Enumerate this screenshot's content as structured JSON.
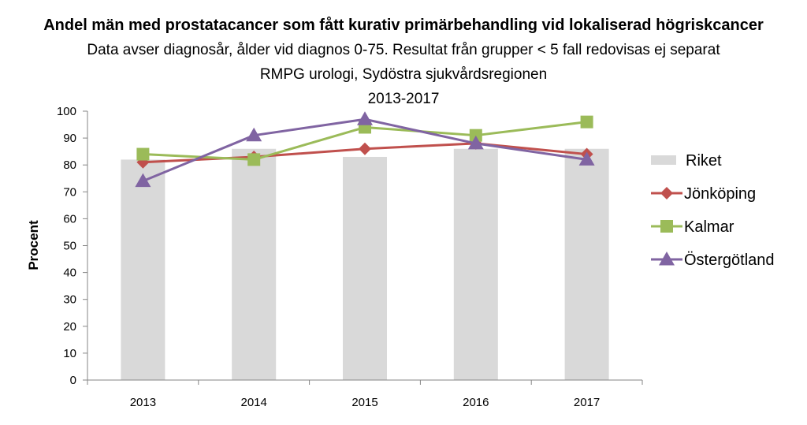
{
  "chart_data": {
    "type": "bar",
    "title": "Andel män med prostatacancer som fått kurativ primärbehandling vid lokaliserad högriskcancer",
    "subtitle_lines": [
      "Data avser diagnosår, ålder vid diagnos 0-75. Resultat från grupper < 5 fall redovisas ej separat",
      "RMPG urologi, Sydöstra sjukvårdsregionen",
      "2013-2017"
    ],
    "xlabel": "",
    "ylabel": "Procent",
    "ylim": [
      0,
      100
    ],
    "yticks": [
      "0",
      "10",
      "20",
      "30",
      "40",
      "50",
      "60",
      "70",
      "80",
      "90",
      "100"
    ],
    "categories": [
      "2013",
      "2014",
      "2015",
      "2016",
      "2017"
    ],
    "grid": false,
    "legend_position": "right",
    "series": [
      {
        "name": "Riket",
        "kind": "bar",
        "color": "#d9d9d9",
        "values": [
          82,
          86,
          83,
          86,
          86
        ]
      },
      {
        "name": "Jönköping",
        "kind": "line",
        "marker": "diamond",
        "color": "#c0504d",
        "values": [
          81,
          83,
          86,
          88,
          84
        ]
      },
      {
        "name": "Kalmar",
        "kind": "line",
        "marker": "square",
        "color": "#9bbb59",
        "values": [
          84,
          82,
          94,
          91,
          96
        ]
      },
      {
        "name": "Östergötland",
        "kind": "line",
        "marker": "triangle",
        "color": "#8064a2",
        "values": [
          74,
          91,
          97,
          88,
          82
        ]
      }
    ]
  }
}
